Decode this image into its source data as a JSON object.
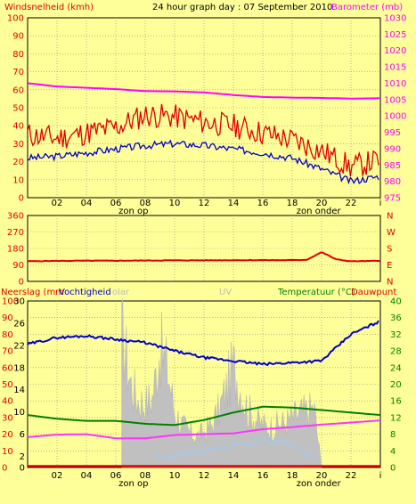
{
  "title": "24 hour graph day : 07 September 2010",
  "colors": {
    "background": "#ffff99",
    "panel": "#ffff99",
    "grid": "#8c8c8c",
    "wind": "#e00000",
    "wind_dir": "#e00000",
    "barometer": "#ff00ff",
    "pink": "#ff33ff",
    "blue": "#0000cc",
    "green": "#008000",
    "gray": "#c0c0c0",
    "light_blue": "#99ccff",
    "solar": "#bbbbbb",
    "uv": "#bbbbbb"
  },
  "x_ticks": [
    "02",
    "04",
    "06",
    "08",
    "10",
    "12",
    "14",
    "16",
    "18",
    "20",
    "22",
    "i"
  ],
  "sunrise_label": "zon op",
  "sunset_label": "zon onder",
  "chart_data": [
    {
      "type": "line",
      "title": "24 hour graph day : 07 September 2010",
      "ylabel_left": "Windsnelheid (kmh)",
      "ylabel_right": "Barometer (mb)",
      "ylim_left": [
        0,
        100
      ],
      "ylim_right": [
        975,
        1030
      ],
      "yticks_left": [
        "0",
        "10",
        "20",
        "30",
        "40",
        "50",
        "60",
        "70",
        "80",
        "90",
        "100"
      ],
      "yticks_right": [
        "975",
        "980",
        "985",
        "990",
        "995",
        "1000",
        "1005",
        "1010",
        "1015",
        "1020",
        "1025",
        "1030"
      ],
      "x_hours": [
        0,
        2,
        4,
        6,
        8,
        10,
        12,
        14,
        16,
        18,
        20,
        22,
        24
      ],
      "series": [
        {
          "name": "Barometer (mb)",
          "axis": "right",
          "values": [
            1010.0,
            1009.0,
            1008.6,
            1008.2,
            1007.6,
            1007.5,
            1007.2,
            1006.4,
            1005.8,
            1005.6,
            1005.5,
            1005.3,
            1005.4
          ]
        },
        {
          "name": "Windsnelheid (kmh)",
          "axis": "left",
          "values": [
            35,
            33,
            36,
            39,
            46,
            45,
            42,
            40,
            36,
            32,
            26,
            17,
            21
          ]
        },
        {
          "name": "",
          "axis": "left",
          "values": [
            22,
            23,
            25,
            27,
            29,
            30,
            29,
            27,
            25,
            22,
            16,
            9,
            12
          ]
        }
      ]
    },
    {
      "type": "line",
      "ylabel_right": "N W S E N",
      "ylim": [
        0,
        360
      ],
      "yticks": [
        "0",
        "90",
        "180",
        "270",
        "360"
      ],
      "x_hours": [
        0,
        2,
        4,
        6,
        8,
        10,
        12,
        14,
        16,
        18,
        19,
        20,
        21,
        22,
        24
      ],
      "series": [
        {
          "name": "",
          "values": [
            110,
            112,
            113,
            113,
            114,
            115,
            115,
            116,
            116,
            116,
            118,
            160,
            120,
            110,
            112
          ]
        }
      ]
    },
    {
      "type": "line",
      "labels_top": [
        "Neerslag (mm",
        "Vochtigheid",
        "olar",
        "UV",
        "Temperatuur (°C)",
        "Dauwpunt"
      ],
      "ylim_left_outer": [
        0,
        100
      ],
      "yticks_left_outer": [
        "0",
        "10",
        "20",
        "30",
        "40",
        "50",
        "60",
        "70",
        "80",
        "90",
        "100"
      ],
      "ylim_left_inner": [
        0,
        30
      ],
      "yticks_left_inner": [
        "0",
        "2",
        "6",
        "10",
        "14",
        "18",
        "22",
        "26",
        "30"
      ],
      "ylim_right": [
        0,
        40
      ],
      "yticks_right": [
        "0",
        "4",
        "8",
        "12",
        "16",
        "20",
        "24",
        "28",
        "32",
        "36",
        "40"
      ],
      "x_hours": [
        0,
        2,
        4,
        6,
        8,
        10,
        12,
        14,
        16,
        18,
        20,
        22,
        24
      ],
      "series": [
        {
          "name": "Vochtigheid",
          "axis": "outer",
          "values": [
            74,
            78,
            79,
            77,
            75,
            70,
            66,
            64,
            62,
            63,
            64,
            80,
            88
          ]
        },
        {
          "name": "Temperatuur (°C)",
          "axis": "right",
          "values": [
            12.6,
            11.7,
            11.2,
            11.2,
            10.5,
            10.2,
            11.4,
            13.2,
            14.6,
            14.4,
            13.8,
            13.2,
            12.6
          ]
        },
        {
          "name": "Dauwpunt",
          "axis": "right",
          "values": [
            7.3,
            7.9,
            8.0,
            7.0,
            7.0,
            7.8,
            8.0,
            8.2,
            9.2,
            9.7,
            10.3,
            10.8,
            11.3
          ]
        },
        {
          "name": "olar",
          "axis": "outer",
          "values": [
            0,
            0,
            0,
            0,
            25,
            35,
            22,
            20,
            18,
            22,
            0,
            0,
            0
          ]
        },
        {
          "name": "",
          "axis": "outer",
          "values": [
            0,
            0,
            0,
            0,
            3,
            5,
            8,
            11,
            14,
            12,
            0,
            0,
            0
          ]
        },
        {
          "name": "Neerslag (mm",
          "axis": "outer",
          "values": [
            0,
            0,
            0,
            0,
            0,
            0,
            0,
            0,
            0,
            0,
            0,
            0,
            0
          ]
        }
      ],
      "bars_hours": [
        6.5,
        7,
        7.5,
        8,
        8.5,
        9,
        9.5,
        10,
        10.5,
        11,
        11.5,
        12,
        12.5,
        13,
        13.5,
        14,
        14.5,
        15,
        15.5,
        16,
        16.5,
        17,
        17.5,
        18,
        18.5,
        19,
        19.5,
        20
      ],
      "bars_values": [
        92,
        60,
        48,
        45,
        50,
        85,
        70,
        40,
        30,
        25,
        22,
        25,
        30,
        40,
        55,
        72,
        55,
        40,
        35,
        30,
        28,
        30,
        32,
        35,
        38,
        40,
        42,
        0
      ]
    }
  ]
}
